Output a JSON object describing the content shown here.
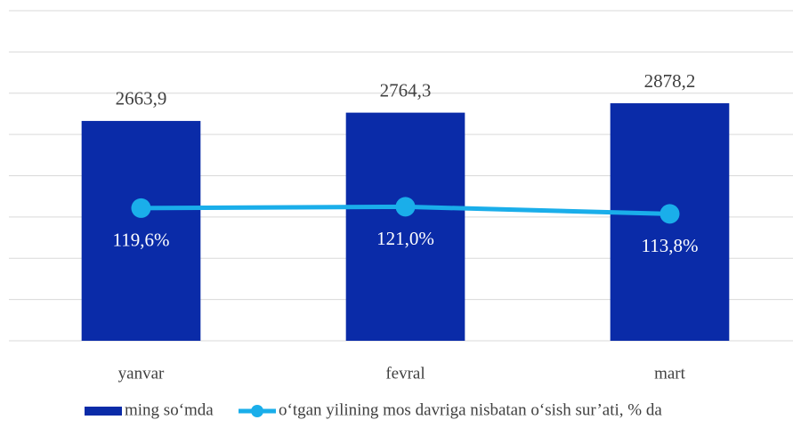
{
  "chart_data": {
    "type": "bar-line",
    "categories": [
      "yanvar",
      "fevral",
      "mart"
    ],
    "series": [
      {
        "name": "ming so‘mda",
        "type": "bar",
        "color": "#0a2ba8",
        "values": [
          2663.9,
          2764.3,
          2878.2
        ],
        "value_labels": [
          "2663,9",
          "2764,3",
          "2878,2"
        ]
      },
      {
        "name": "o‘tgan yilining mos davriga nisbatan o‘sish sur’ati, % da",
        "type": "line",
        "axis": "y2",
        "color": "#1aaeea",
        "values": [
          119.6,
          121.0,
          113.8
        ],
        "value_labels": [
          "119,6%",
          "121,0%",
          "113,8%"
        ]
      }
    ],
    "ylim": [
      0,
      4000
    ],
    "yticks": [
      0,
      500,
      1000,
      1500,
      2000,
      2500,
      3000,
      3500,
      4000
    ],
    "y2lim": [
      -15,
      320
    ],
    "grid": true,
    "legend": "bottom"
  }
}
